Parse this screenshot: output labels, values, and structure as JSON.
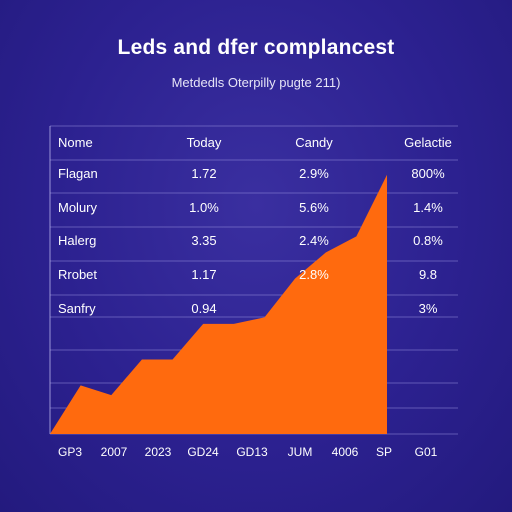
{
  "chart_data": {
    "type": "area",
    "title": "Leds and dfer complancest",
    "subtitle": "Metdedls Oterpilly pugte 211)",
    "x_labels": [
      "GP3",
      "2007",
      "2023",
      "GD24",
      "GD13",
      "JUM",
      "4006",
      "SP",
      "G01"
    ],
    "x": [
      0,
      1,
      2,
      3,
      4,
      5,
      6,
      7,
      8,
      9,
      10,
      11,
      12,
      13,
      14
    ],
    "y": [
      0,
      1.5,
      1.2,
      2.3,
      2.3,
      3.4,
      3.4,
      3.6,
      4.8,
      5.6,
      6.1,
      8.0,
      0,
      0,
      0
    ],
    "visible_points": 12,
    "area_color": "#ff6a0e",
    "grid": true,
    "table": {
      "headers": [
        "Nome",
        "Today",
        "Candy",
        "Gelactie"
      ],
      "rows": [
        [
          "Flagan",
          "1.72",
          "2.9%",
          "800%"
        ],
        [
          "Molury",
          "1.0%",
          "5.6%",
          "1.4%"
        ],
        [
          "Halerg",
          "3.35",
          "2.4%",
          "0.8%"
        ],
        [
          "Rrobet",
          "1.17",
          "2.8%",
          "9.8"
        ],
        [
          "Sanfry",
          "0.94",
          "",
          "3%"
        ]
      ]
    }
  }
}
